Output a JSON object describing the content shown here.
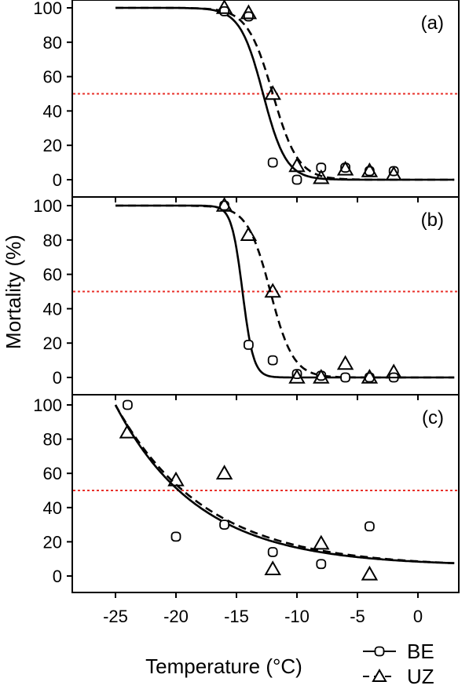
{
  "chart_data": [
    {
      "type": "scatter",
      "panel_label": "(a)",
      "ylim": [
        0,
        100
      ],
      "xlim": [
        -25,
        3
      ],
      "reference_line": {
        "y": 50,
        "color": "#e8302a",
        "style": "dotted"
      },
      "series": [
        {
          "name": "BE",
          "marker": "circle",
          "line": "solid",
          "points": [
            [
              -16,
              98
            ],
            [
              -14,
              95
            ],
            [
              -12,
              10
            ],
            [
              -10,
              0
            ],
            [
              -8,
              7
            ],
            [
              -6,
              7
            ],
            [
              -4,
              5
            ],
            [
              -2,
              5
            ]
          ],
          "fit": {
            "model": "logistic",
            "t50": -12.8,
            "k": 1.05
          }
        },
        {
          "name": "UZ",
          "marker": "triangle",
          "line": "dashed",
          "points": [
            [
              -16,
              100
            ],
            [
              -14,
              97
            ],
            [
              -12,
              50
            ],
            [
              -10,
              8
            ],
            [
              -8,
              1
            ],
            [
              -6,
              6
            ],
            [
              -4,
              5
            ],
            [
              -2,
              3
            ]
          ],
          "fit": {
            "model": "logistic",
            "t50": -12.0,
            "k": 0.95
          }
        }
      ]
    },
    {
      "type": "scatter",
      "panel_label": "(b)",
      "ylim": [
        0,
        100
      ],
      "xlim": [
        -25,
        3
      ],
      "reference_line": {
        "y": 50,
        "color": "#e8302a",
        "style": "dotted"
      },
      "series": [
        {
          "name": "BE",
          "marker": "circle",
          "line": "solid",
          "points": [
            [
              -16,
              100
            ],
            [
              -14,
              19
            ],
            [
              -12,
              10
            ],
            [
              -10,
              2
            ],
            [
              -8,
              1
            ],
            [
              -6,
              0
            ],
            [
              -4,
              0
            ],
            [
              -2,
              0
            ]
          ],
          "fit": {
            "model": "logistic",
            "t50": -14.5,
            "k": 2.2
          }
        },
        {
          "name": "UZ",
          "marker": "triangle",
          "line": "dashed",
          "points": [
            [
              -16,
              100
            ],
            [
              -14,
              83
            ],
            [
              -12,
              50
            ],
            [
              -10,
              0
            ],
            [
              -8,
              0
            ],
            [
              -6,
              8
            ],
            [
              -4,
              0
            ],
            [
              -2,
              3
            ]
          ],
          "fit": {
            "model": "logistic",
            "t50": -12.2,
            "k": 1.05
          }
        }
      ]
    },
    {
      "type": "scatter",
      "panel_label": "(c)",
      "ylim": [
        0,
        100
      ],
      "xlim": [
        -25,
        3
      ],
      "reference_line": {
        "y": 50,
        "color": "#e8302a",
        "style": "dotted"
      },
      "series": [
        {
          "name": "BE",
          "marker": "circle",
          "line": "solid",
          "points": [
            [
              -24,
              100
            ],
            [
              -20,
              23
            ],
            [
              -16,
              30
            ],
            [
              -12,
              14
            ],
            [
              -8,
              7
            ],
            [
              -4,
              29
            ]
          ],
          "fit": {
            "model": "exponential",
            "from": [
              -25,
              100
            ],
            "to": [
              3,
              7.5
            ],
            "shape": 0.145
          }
        },
        {
          "name": "UZ",
          "marker": "triangle",
          "line": "dashed",
          "points": [
            [
              -24,
              84
            ],
            [
              -20,
              56
            ],
            [
              -16,
              60
            ],
            [
              -12,
              4
            ],
            [
              -8,
              19
            ],
            [
              -4,
              1
            ]
          ],
          "fit": {
            "model": "exponential",
            "from": [
              -25,
              100
            ],
            "to": [
              3,
              7.5
            ],
            "shape": 0.135
          }
        }
      ]
    }
  ],
  "axes": {
    "xlabel": "Temperature (°C)",
    "ylabel": "Mortality (%)",
    "x_ticks": [
      -25,
      -20,
      -15,
      -10,
      -5,
      0
    ],
    "x_tick_labels": [
      "-25",
      "-20",
      "-15",
      "-10",
      "-5",
      "0"
    ],
    "y_ticks": [
      0,
      20,
      40,
      60,
      80,
      100
    ],
    "y_tick_labels": [
      "0",
      "20",
      "40",
      "60",
      "80",
      "100"
    ]
  },
  "legend": {
    "position": "bottom-right",
    "entries": [
      {
        "label": "BE",
        "marker": "circle",
        "line": "solid"
      },
      {
        "label": "UZ",
        "marker": "triangle",
        "line": "dashed"
      }
    ]
  },
  "colors": {
    "line": "#000000",
    "reference": "#e8302a",
    "background": "#ffffff"
  }
}
